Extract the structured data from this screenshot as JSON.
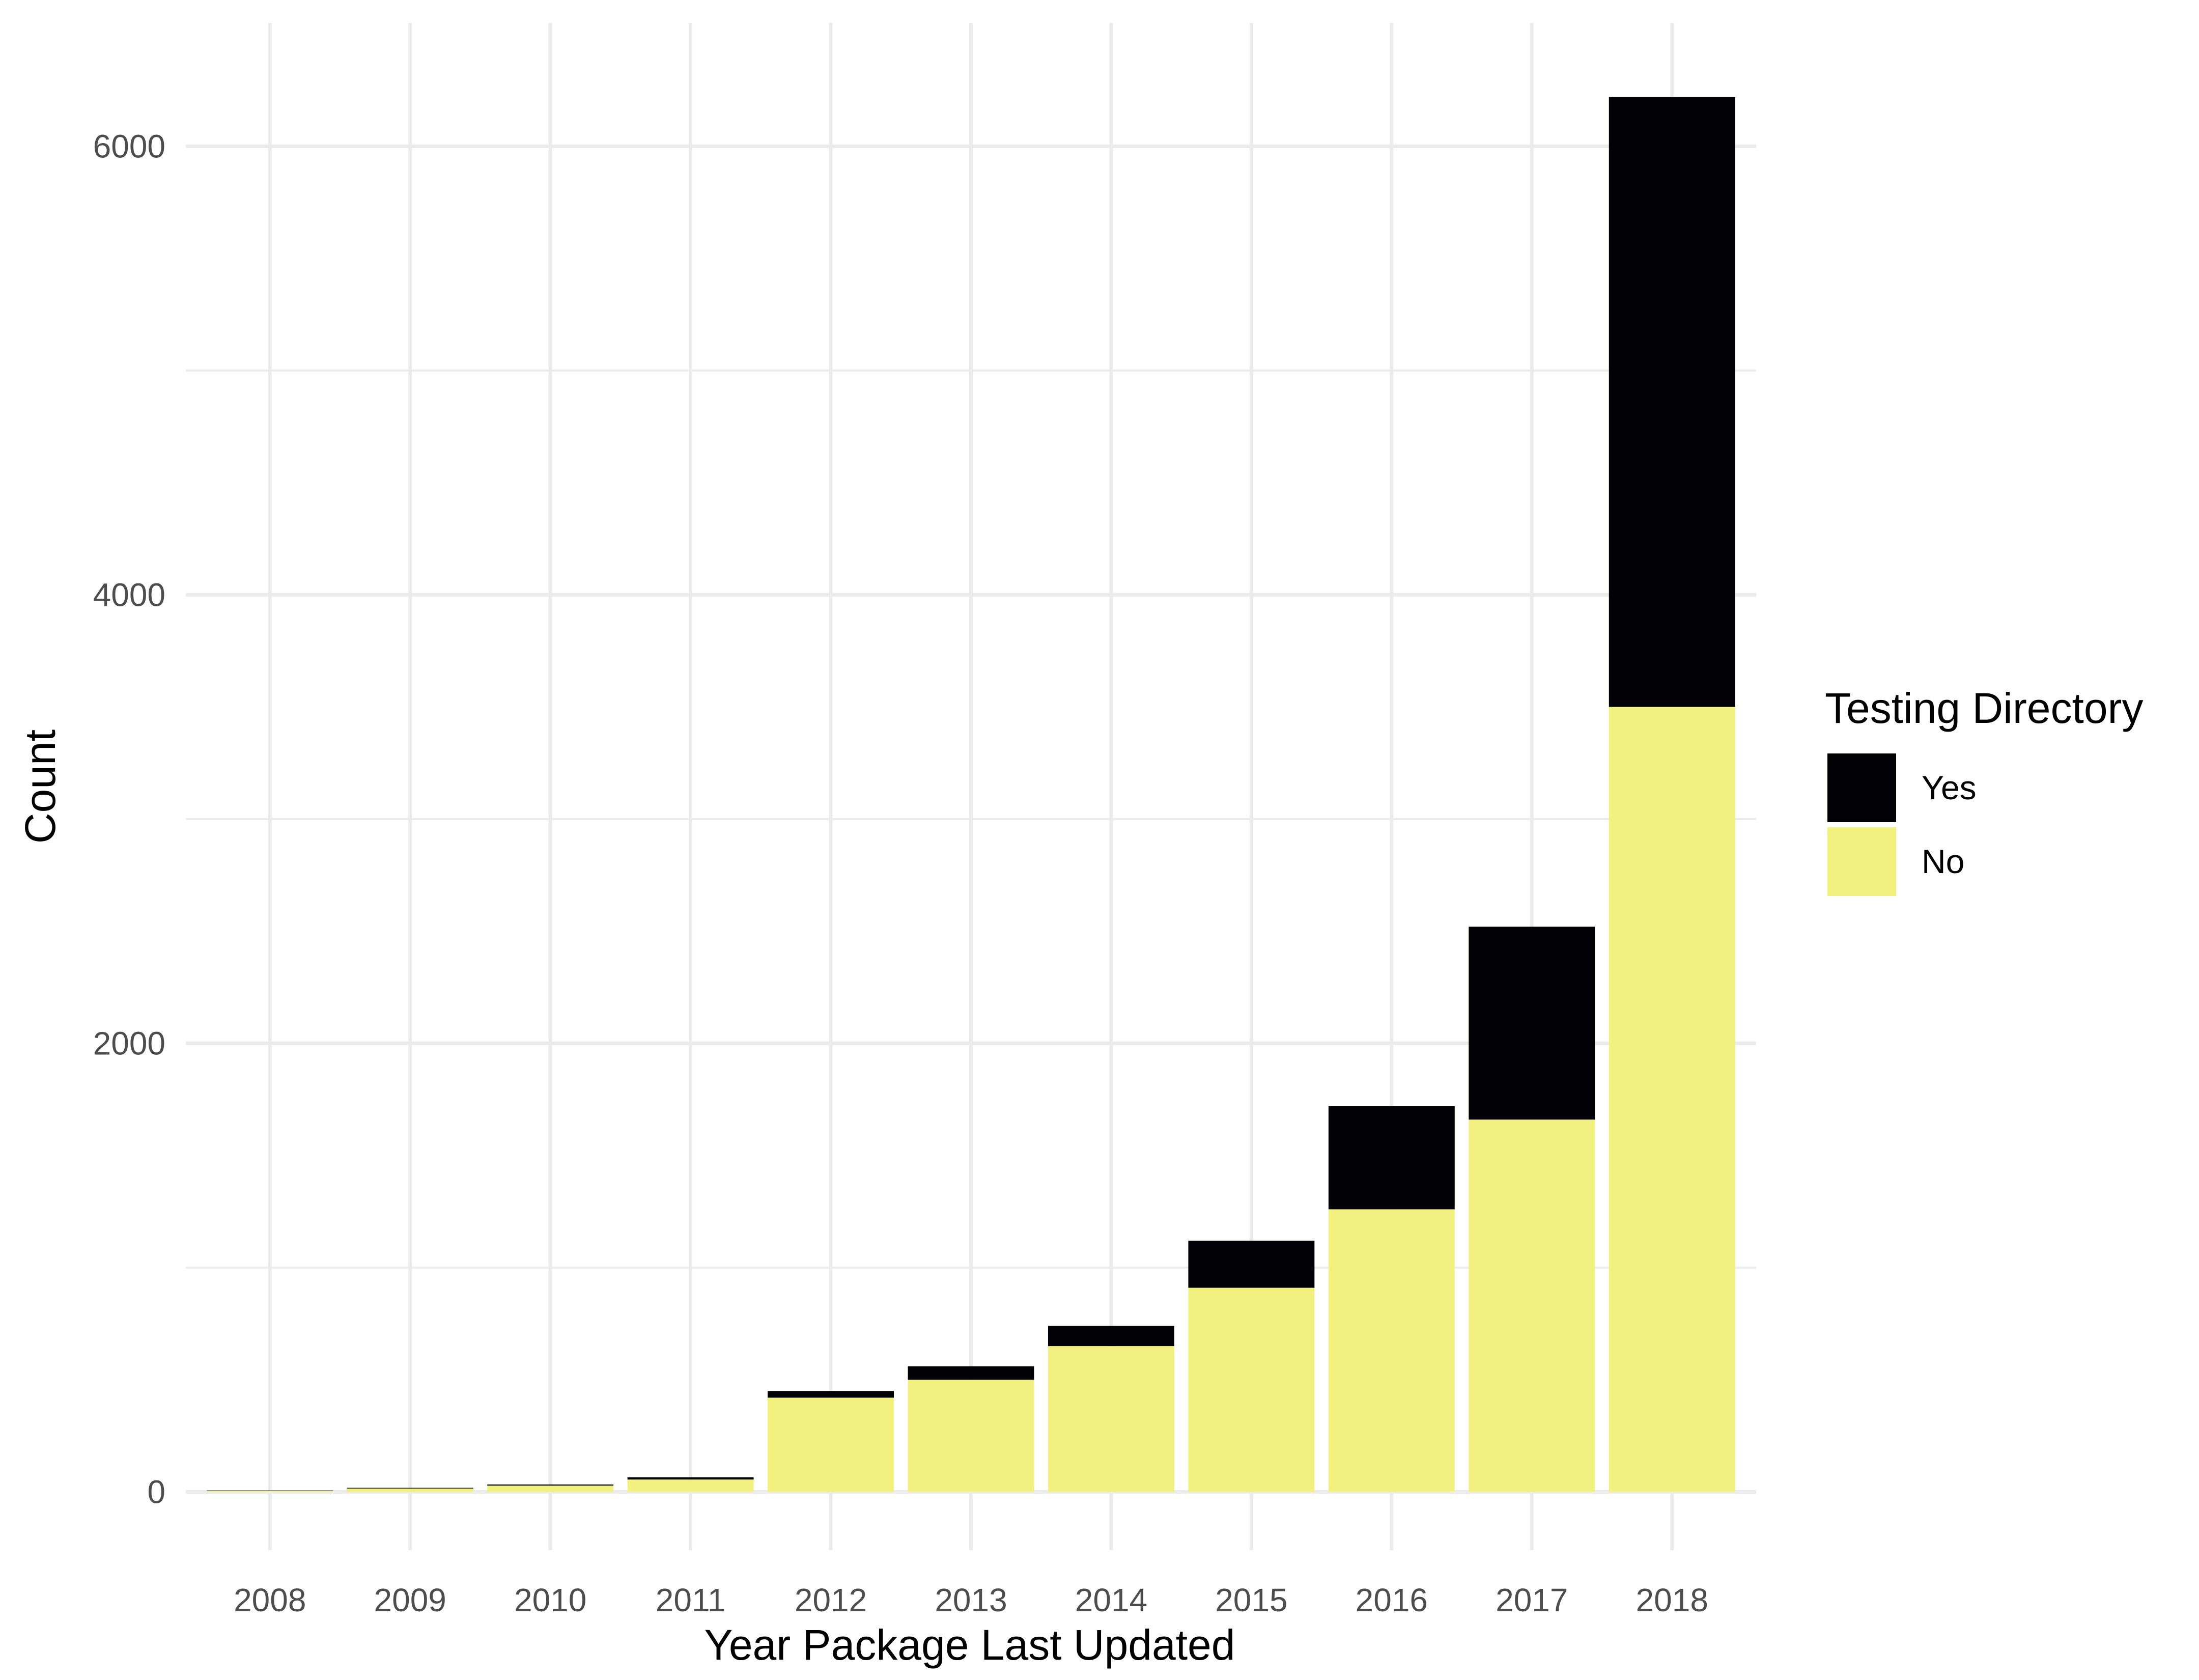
{
  "chart_data": {
    "type": "bar",
    "stacked": true,
    "categories": [
      "2008",
      "2009",
      "2010",
      "2011",
      "2012",
      "2013",
      "2014",
      "2015",
      "2016",
      "2017",
      "2018"
    ],
    "series": [
      {
        "name": "No",
        "color": "#f2f180",
        "values": [
          5,
          15,
          28,
          55,
          420,
          500,
          650,
          910,
          1260,
          1660,
          3500
        ]
      },
      {
        "name": "Yes",
        "color": "#020206",
        "values": [
          1,
          3,
          5,
          10,
          30,
          60,
          90,
          210,
          460,
          860,
          2720
        ]
      }
    ],
    "xlabel": "Year Package Last Updated",
    "ylabel": "Count",
    "ylim": [
      -260,
      6550
    ],
    "yticks": [
      0,
      2000,
      4000,
      6000
    ],
    "grid": true,
    "legend": {
      "title": "Testing Directory",
      "placement": "right",
      "entries": [
        "Yes",
        "No"
      ]
    },
    "colors": {
      "background": "#ffffff",
      "grid": "#ebebeb",
      "tick_text": "#4d4d4d"
    }
  }
}
